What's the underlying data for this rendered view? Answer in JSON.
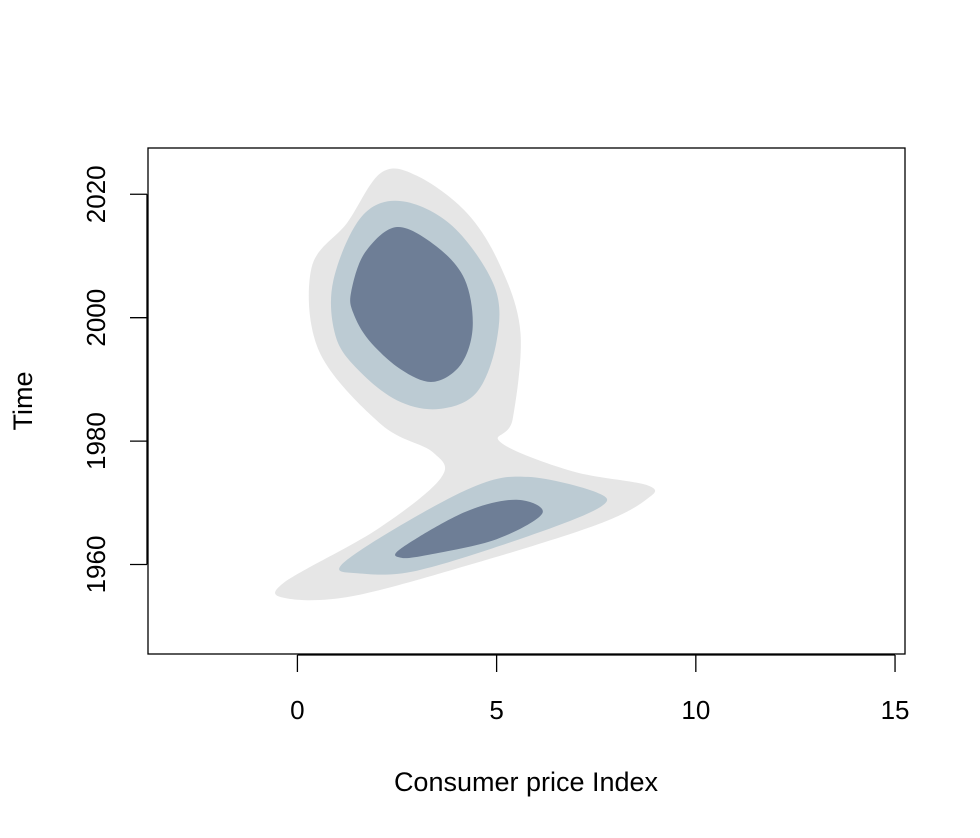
{
  "chart_data": {
    "type": "contour",
    "title": "",
    "xlabel": "Consumer price Index",
    "ylabel": "Time",
    "xlim": [
      -3.75,
      15.25
    ],
    "ylim": [
      1945.5,
      2027.5
    ],
    "xticks": [
      0,
      5,
      10,
      15
    ],
    "yticks": [
      1960,
      1980,
      2000,
      2020
    ],
    "grid": false,
    "legend": "none",
    "levels": [
      {
        "name": "outer",
        "color": "#e6e6e6"
      },
      {
        "name": "middle",
        "color": "#bccbd3"
      },
      {
        "name": "inner",
        "color": "#6e7e96"
      }
    ],
    "regions": [
      {
        "level": "outer",
        "points": [
          [
            1.25,
            2015.4
          ],
          [
            2.1,
            2023.5
          ],
          [
            3.0,
            2023.0
          ],
          [
            4.25,
            2017.0
          ],
          [
            5.1,
            2008.3
          ],
          [
            5.6,
            1997.5
          ],
          [
            5.4,
            1983.5
          ],
          [
            5.1,
            1979.8
          ],
          [
            6.9,
            1975.1
          ],
          [
            8.8,
            1972.8
          ],
          [
            8.75,
            1970.5
          ],
          [
            7.5,
            1966.4
          ],
          [
            4.4,
            1960.1
          ],
          [
            1.4,
            1954.9
          ],
          [
            -0.25,
            1954.5
          ],
          [
            -0.35,
            1957.0
          ],
          [
            2.0,
            1965.7
          ],
          [
            3.6,
            1974.0
          ],
          [
            3.4,
            1978.2
          ],
          [
            2.1,
            1982.7
          ],
          [
            0.55,
            1994.5
          ],
          [
            0.35,
            2008.0
          ]
        ],
        "closed": true
      },
      {
        "level": "middle",
        "points": [
          [
            0.9,
            2006.0
          ],
          [
            1.6,
            2016.3
          ],
          [
            2.6,
            2018.9
          ],
          [
            3.9,
            2014.8
          ],
          [
            4.95,
            2005.0
          ],
          [
            5.0,
            1996.2
          ],
          [
            4.5,
            1987.9
          ],
          [
            3.55,
            1985.2
          ],
          [
            2.5,
            1986.6
          ],
          [
            1.5,
            1991.7
          ],
          [
            0.95,
            1997.2
          ]
        ],
        "closed": true
      },
      {
        "level": "middle",
        "points": [
          [
            1.1,
            1959.9
          ],
          [
            2.5,
            1966.0
          ],
          [
            4.5,
            1972.8
          ],
          [
            5.8,
            1974.2
          ],
          [
            7.5,
            1971.7
          ],
          [
            7.6,
            1969.3
          ],
          [
            5.8,
            1964.6
          ],
          [
            3.0,
            1959.0
          ],
          [
            1.5,
            1958.6
          ]
        ],
        "closed": true
      },
      {
        "level": "inner",
        "points": [
          [
            1.35,
            2004.2
          ],
          [
            1.7,
            2010.6
          ],
          [
            2.5,
            2014.7
          ],
          [
            3.5,
            2011.5
          ],
          [
            4.2,
            2006.2
          ],
          [
            4.4,
            1998.5
          ],
          [
            4.1,
            1992.4
          ],
          [
            3.4,
            1989.6
          ],
          [
            2.6,
            1991.6
          ],
          [
            1.8,
            1996.3
          ],
          [
            1.4,
            2000.8
          ]
        ],
        "closed": true
      },
      {
        "level": "inner",
        "points": [
          [
            2.6,
            1962.6
          ],
          [
            4.2,
            1968.5
          ],
          [
            5.5,
            1970.5
          ],
          [
            6.15,
            1968.3
          ],
          [
            5.0,
            1964.1
          ],
          [
            3.3,
            1961.6
          ],
          [
            2.6,
            1961.1
          ]
        ],
        "closed": true
      }
    ]
  }
}
